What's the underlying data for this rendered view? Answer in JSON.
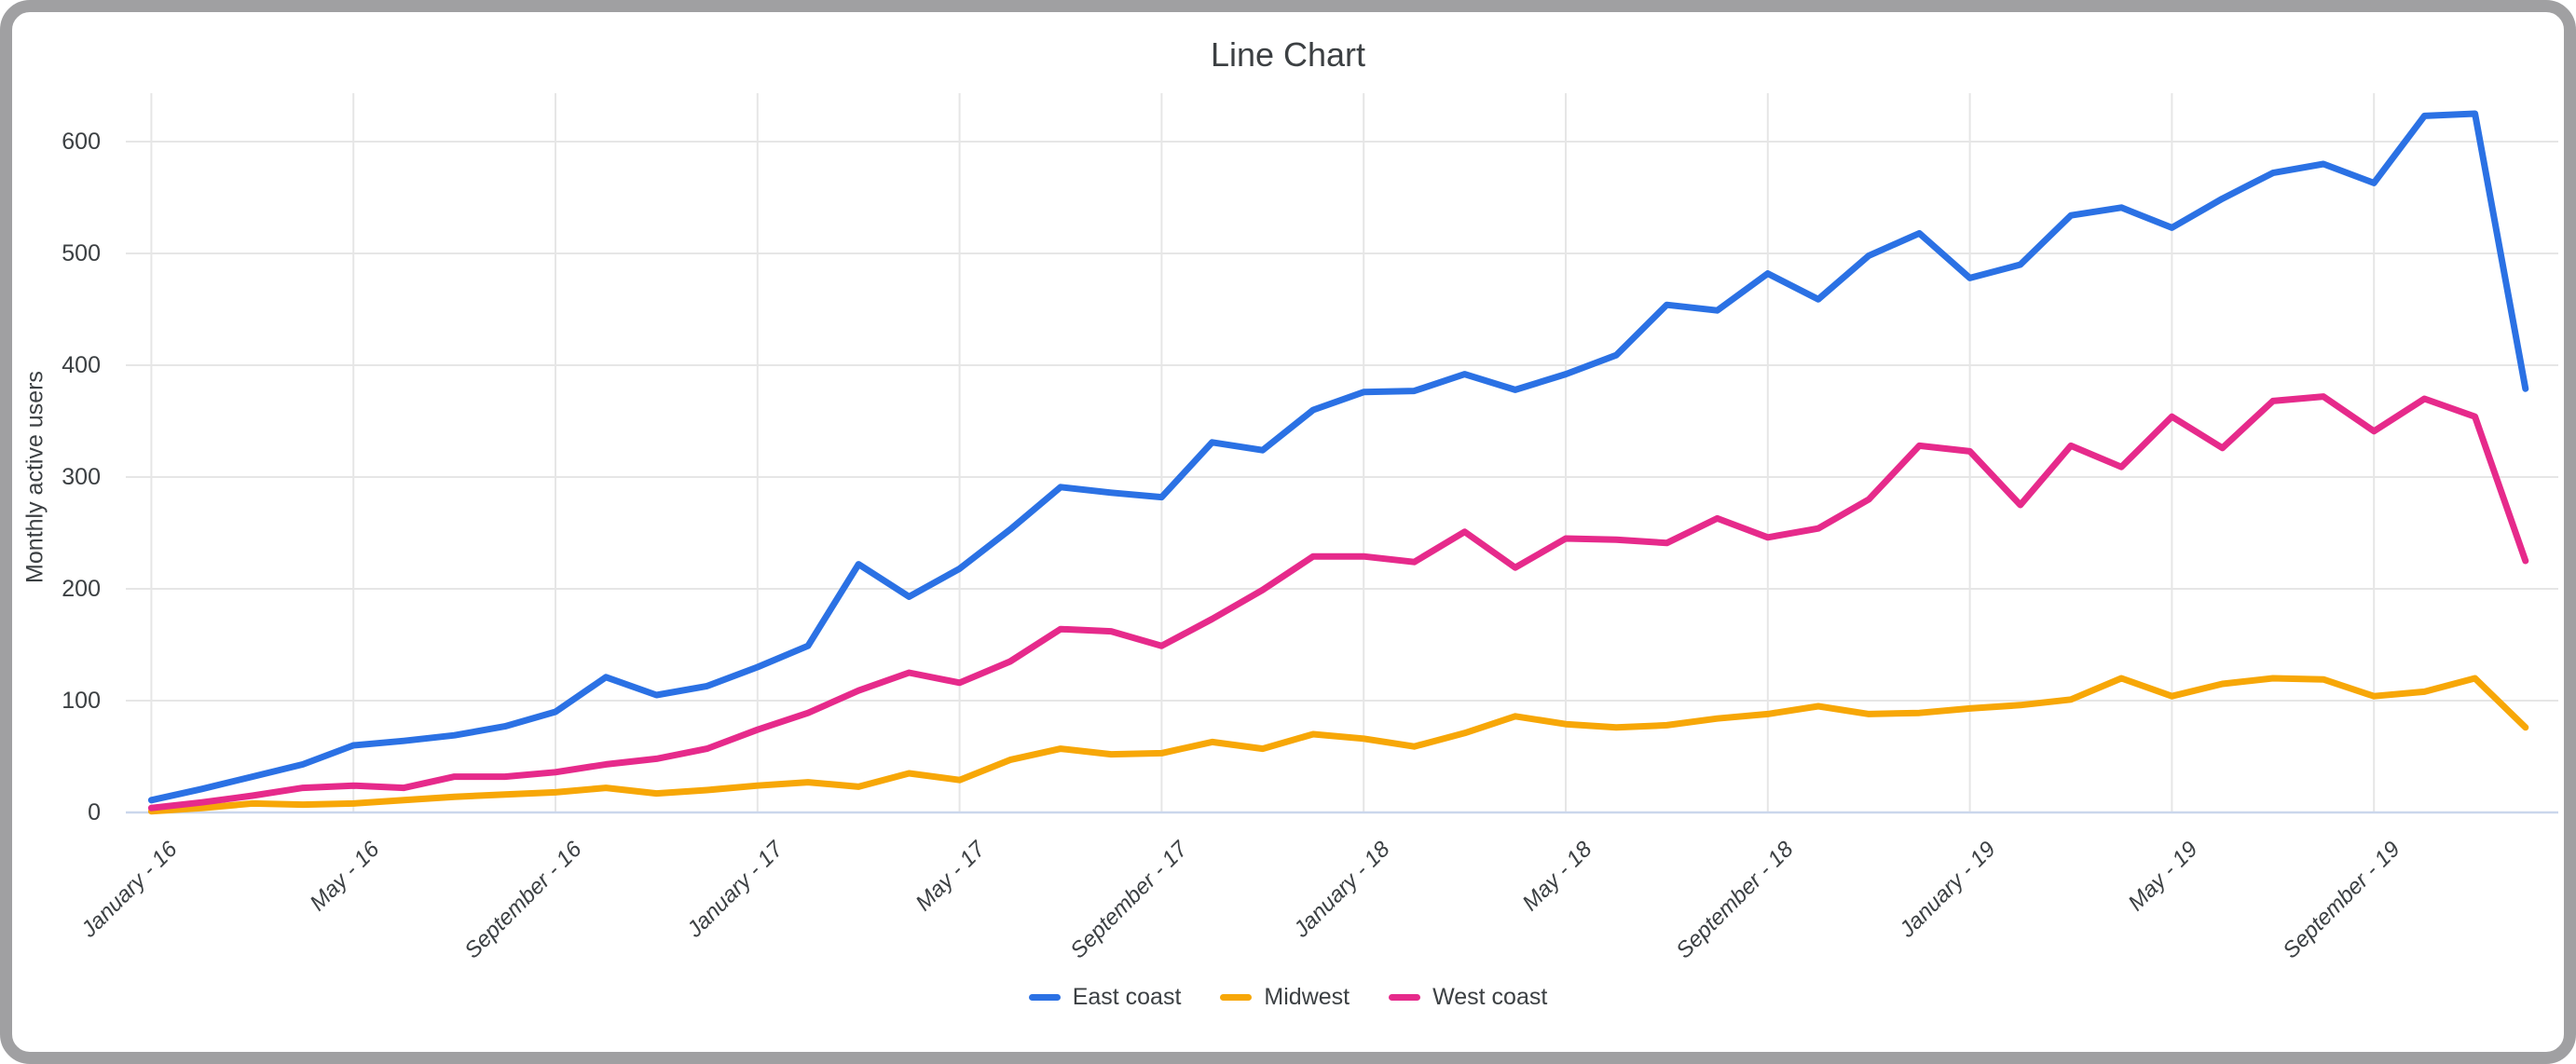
{
  "theme": {
    "gridline_color": "#e6e6e6",
    "baseline_color": "#cbd7ec",
    "text_color": "#3c4043",
    "frame_color": "#a0a0a2",
    "background": "#ffffff"
  },
  "chart_data": {
    "type": "line",
    "title": "Line Chart",
    "ylabel": "Monthly active users",
    "xlabel": "",
    "ylim": [
      0,
      650
    ],
    "grid": true,
    "legend_position": "bottom",
    "x_unit": "month",
    "n_points": 48,
    "x_range_note": "monthly points from January 2016 to December 2019",
    "y_ticks": [
      0,
      100,
      200,
      300,
      400,
      500,
      600
    ],
    "x_tick_labels": [
      "January - 16",
      "May - 16",
      "September - 16",
      "January - 17",
      "May - 17",
      "September - 17",
      "January - 18",
      "May - 18",
      "September - 18",
      "January - 19",
      "May - 19",
      "September - 19"
    ],
    "x_tick_month_indices": [
      0,
      4,
      8,
      12,
      16,
      20,
      24,
      28,
      32,
      36,
      40,
      44
    ],
    "series": [
      {
        "name": "East coast",
        "color": "#2b71e4",
        "values": [
          11,
          21,
          32,
          43,
          60,
          64,
          69,
          77,
          90,
          121,
          105,
          113,
          130,
          149,
          222,
          193,
          218,
          253,
          291,
          286,
          282,
          331,
          324,
          360,
          376,
          377,
          392,
          378,
          392,
          409,
          454,
          449,
          482,
          459,
          498,
          518,
          478,
          490,
          534,
          541,
          523,
          549,
          572,
          580,
          563,
          623,
          625,
          379
        ]
      },
      {
        "name": "Midwest",
        "color": "#f7a707",
        "values": [
          1,
          4,
          8,
          7,
          8,
          11,
          14,
          16,
          18,
          22,
          17,
          20,
          24,
          27,
          23,
          35,
          29,
          47,
          57,
          52,
          53,
          63,
          57,
          70,
          66,
          59,
          71,
          86,
          79,
          76,
          78,
          84,
          88,
          95,
          88,
          89,
          93,
          96,
          101,
          120,
          104,
          115,
          120,
          119,
          104,
          108,
          120,
          76
        ]
      },
      {
        "name": "West coast",
        "color": "#e62a8b",
        "values": [
          4,
          9,
          15,
          22,
          24,
          22,
          32,
          32,
          36,
          43,
          48,
          57,
          74,
          89,
          109,
          125,
          116,
          135,
          164,
          162,
          149,
          173,
          199,
          229,
          229,
          224,
          251,
          219,
          245,
          244,
          241,
          263,
          246,
          254,
          280,
          328,
          323,
          275,
          328,
          309,
          354,
          326,
          368,
          372,
          341,
          370,
          354,
          225
        ]
      }
    ]
  }
}
